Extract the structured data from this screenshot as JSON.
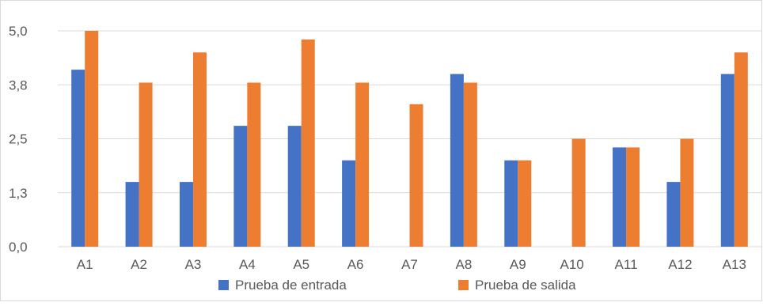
{
  "chart_data": {
    "type": "bar",
    "categories": [
      "A1",
      "A2",
      "A3",
      "A4",
      "A5",
      "A6",
      "A7",
      "A8",
      "A9",
      "A10",
      "A11",
      "A12",
      "A13"
    ],
    "series": [
      {
        "name": "Prueba de entrada",
        "color": "#4472C4",
        "values": [
          4.1,
          1.5,
          1.5,
          2.8,
          2.8,
          2.0,
          0.0,
          4.0,
          2.0,
          0.0,
          2.3,
          1.5,
          4.0
        ]
      },
      {
        "name": "Prueba de salida",
        "color": "#ED7D31",
        "values": [
          5.0,
          3.8,
          4.5,
          3.8,
          4.8,
          3.8,
          3.3,
          3.8,
          2.0,
          2.5,
          2.3,
          2.5,
          4.5
        ]
      }
    ],
    "yticks": [
      "0,0",
      "1,3",
      "2,5",
      "3,8",
      "5,0"
    ],
    "ytick_values": [
      0,
      1.25,
      2.5,
      3.75,
      5.0
    ],
    "ylim": [
      0,
      5.0
    ],
    "grid": true,
    "legend": "bottom",
    "title": "",
    "xlabel": "",
    "ylabel": ""
  }
}
